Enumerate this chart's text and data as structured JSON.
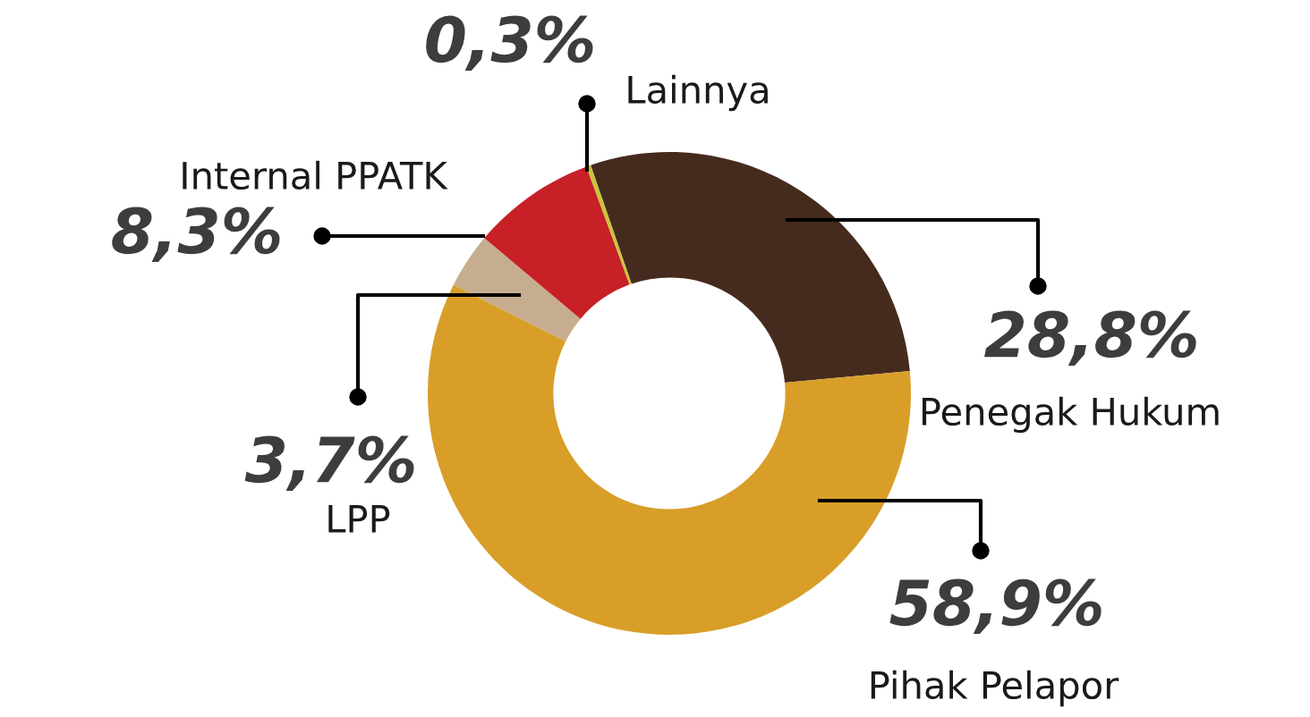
{
  "chart_data": {
    "type": "donut",
    "categories": [
      "Penegak Hukum",
      "Pihak Pelapor",
      "LPP",
      "Internal PPATK",
      "Lainnya"
    ],
    "values": [
      28.8,
      58.9,
      3.7,
      8.3,
      0.3
    ],
    "value_labels": [
      "28,8%",
      "58,9%",
      "3,7%",
      "8,3%",
      "0,3%"
    ],
    "colors": [
      "#452b1e",
      "#d89e28",
      "#c6ad8f",
      "#c72027",
      "#c8c43a"
    ],
    "legend": false
  }
}
